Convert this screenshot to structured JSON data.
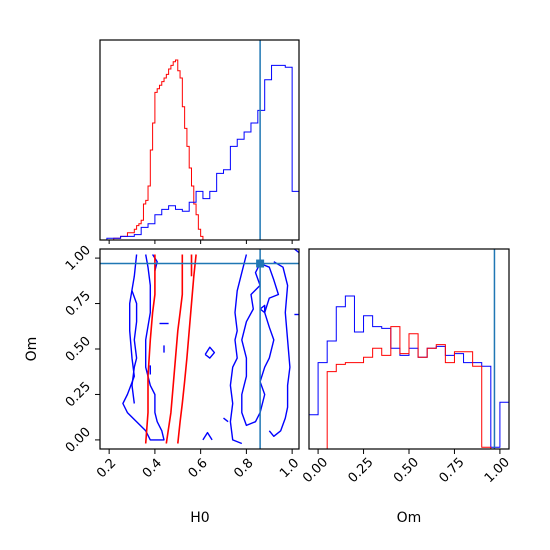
{
  "chart_data": {
    "type": "corner",
    "parameters": [
      "H0",
      "Om"
    ],
    "truth": {
      "H0": 0.86,
      "Om": 0.97
    },
    "colors": {
      "series_a": "#ff0000",
      "series_b": "#0000ff",
      "truth": "#1f77b4",
      "frame": "#000000"
    },
    "h0_ticks": [
      "0.2",
      "0.4",
      "0.6",
      "0.8",
      "1.0"
    ],
    "om_ticks": [
      "0.00",
      "0.25",
      "0.50",
      "0.75",
      "1.00"
    ],
    "hist_h0": {
      "xlim": [
        0.16,
        1.03
      ],
      "bin_edges": [
        0.16,
        0.19,
        0.22,
        0.25,
        0.28,
        0.31,
        0.34,
        0.37,
        0.4,
        0.43,
        0.46,
        0.49,
        0.52,
        0.55,
        0.58,
        0.61,
        0.64,
        0.67,
        0.7,
        0.73,
        0.76,
        0.79,
        0.82,
        0.85,
        0.88,
        0.91,
        0.94,
        0.97,
        1.0,
        1.03
      ],
      "red_edges": [
        0.16,
        0.22,
        0.25,
        0.28,
        0.31,
        0.32,
        0.33,
        0.34,
        0.35,
        0.36,
        0.37,
        0.38,
        0.39,
        0.4,
        0.41,
        0.42,
        0.43,
        0.44,
        0.45,
        0.46,
        0.47,
        0.48,
        0.49,
        0.5,
        0.51,
        0.52,
        0.53,
        0.54,
        0.55,
        0.56,
        0.57,
        0.58,
        0.59,
        0.6,
        0.61,
        0.62,
        0.63
      ],
      "red": [
        0.0,
        0.01,
        0.02,
        0.04,
        0.06,
        0.08,
        0.09,
        0.11,
        0.2,
        0.22,
        0.3,
        0.5,
        0.65,
        0.82,
        0.84,
        0.86,
        0.88,
        0.9,
        0.92,
        0.95,
        0.97,
        0.99,
        1.0,
        0.94,
        0.9,
        0.74,
        0.62,
        0.52,
        0.4,
        0.3,
        0.2,
        0.14,
        0.06,
        0.02,
        0.0,
        0.0
      ],
      "blue": [
        0.0,
        0.01,
        0.01,
        0.02,
        0.02,
        0.03,
        0.07,
        0.09,
        0.14,
        0.17,
        0.19,
        0.17,
        0.16,
        0.21,
        0.27,
        0.23,
        0.27,
        0.37,
        0.39,
        0.52,
        0.56,
        0.6,
        0.65,
        0.72,
        0.89,
        0.97,
        0.97,
        0.96,
        0.27
      ]
    },
    "hist_om": {
      "xlim": [
        -0.05,
        1.05
      ],
      "bin_edges": [
        -0.05,
        0.0,
        0.05,
        0.1,
        0.15,
        0.2,
        0.25,
        0.3,
        0.35,
        0.4,
        0.45,
        0.5,
        0.55,
        0.6,
        0.65,
        0.7,
        0.75,
        0.8,
        0.85,
        0.9,
        0.95,
        1.0,
        1.05
      ],
      "blue": [
        0.19,
        0.48,
        0.6,
        0.79,
        0.85,
        0.65,
        0.74,
        0.68,
        0.67,
        0.56,
        0.52,
        0.56,
        0.51,
        0.56,
        0.57,
        0.52,
        0.53,
        0.48,
        0.48,
        0.46,
        0.01,
        0.26
      ],
      "red": [
        0.0,
        0.0,
        0.43,
        0.47,
        0.48,
        0.48,
        0.51,
        0.56,
        0.52,
        0.68,
        0.53,
        0.64,
        0.51,
        0.56,
        0.58,
        0.48,
        0.54,
        0.54,
        0.46,
        0.01,
        0.0,
        0.0
      ]
    },
    "scatter": {
      "xlim": [
        0.16,
        1.03
      ],
      "ylim": [
        -0.05,
        1.05
      ],
      "red_contours": [
        [
          [
            0.36,
            -0.02
          ],
          [
            0.37,
            0.15
          ],
          [
            0.37,
            0.35
          ],
          [
            0.38,
            0.55
          ],
          [
            0.39,
            0.7
          ],
          [
            0.4,
            0.8
          ],
          [
            0.4,
            0.9
          ],
          [
            0.4,
            1.02
          ]
        ],
        [
          [
            0.45,
            -0.02
          ],
          [
            0.47,
            0.15
          ],
          [
            0.48,
            0.3
          ],
          [
            0.49,
            0.45
          ],
          [
            0.5,
            0.6
          ],
          [
            0.51,
            0.7
          ],
          [
            0.52,
            0.8
          ],
          [
            0.52,
            0.9
          ],
          [
            0.52,
            1.02
          ]
        ],
        [
          [
            0.5,
            -0.02
          ],
          [
            0.51,
            0.1
          ],
          [
            0.52,
            0.2
          ],
          [
            0.53,
            0.32
          ],
          [
            0.54,
            0.45
          ],
          [
            0.55,
            0.6
          ],
          [
            0.56,
            0.75
          ],
          [
            0.57,
            0.9
          ],
          [
            0.58,
            1.02
          ]
        ],
        [
          [
            0.56,
            1.02
          ],
          [
            0.56,
            0.9
          ]
        ]
      ],
      "blue_contours": [
        [
          [
            0.32,
            1.02
          ],
          [
            0.31,
            0.9
          ],
          [
            0.29,
            0.75
          ],
          [
            0.29,
            0.6
          ],
          [
            0.3,
            0.45
          ],
          [
            0.31,
            0.35
          ],
          [
            0.28,
            0.25
          ],
          [
            0.26,
            0.2
          ],
          [
            0.28,
            0.15
          ],
          [
            0.32,
            0.1
          ],
          [
            0.36,
            0.05
          ],
          [
            0.38,
            0.0
          ],
          [
            0.44,
            0.0
          ],
          [
            0.43,
            0.05
          ],
          [
            0.41,
            0.1
          ],
          [
            0.4,
            0.15
          ],
          [
            0.4,
            0.25
          ],
          [
            0.38,
            0.3
          ],
          [
            0.36,
            0.4
          ],
          [
            0.36,
            0.55
          ],
          [
            0.38,
            0.7
          ],
          [
            0.38,
            0.85
          ],
          [
            0.37,
            0.95
          ],
          [
            0.36,
            1.02
          ]
        ],
        [
          [
            0.39,
            1.02
          ],
          [
            0.41,
            0.98
          ],
          [
            0.4,
            0.93
          ]
        ],
        [
          [
            0.3,
            0.82
          ],
          [
            0.32,
            0.75
          ],
          [
            0.32,
            0.65
          ],
          [
            0.31,
            0.55
          ],
          [
            0.32,
            0.45
          ],
          [
            0.31,
            0.4
          ],
          [
            0.3,
            0.3
          ],
          [
            0.31,
            0.2
          ]
        ],
        [
          [
            0.42,
            0.64
          ],
          [
            0.46,
            0.64
          ]
        ],
        [
          [
            0.38,
            0.41
          ],
          [
            0.38,
            0.36
          ]
        ],
        [
          [
            0.44,
            0.52
          ],
          [
            0.44,
            0.48
          ]
        ],
        [
          [
            0.8,
            1.02
          ],
          [
            0.78,
            0.92
          ],
          [
            0.76,
            0.82
          ],
          [
            0.75,
            0.7
          ],
          [
            0.76,
            0.6
          ],
          [
            0.75,
            0.55
          ],
          [
            0.76,
            0.45
          ],
          [
            0.74,
            0.4
          ],
          [
            0.73,
            0.3
          ],
          [
            0.74,
            0.2
          ],
          [
            0.73,
            0.1
          ],
          [
            0.74,
            0.0
          ],
          [
            0.78,
            -0.02
          ]
        ],
        [
          [
            0.86,
            0.85
          ],
          [
            0.84,
            0.92
          ],
          [
            0.86,
            0.97
          ],
          [
            0.9,
            0.95
          ],
          [
            0.92,
            0.88
          ],
          [
            0.94,
            0.8
          ],
          [
            0.9,
            0.78
          ],
          [
            0.88,
            0.7
          ],
          [
            0.9,
            0.62
          ],
          [
            0.92,
            0.55
          ],
          [
            0.9,
            0.45
          ],
          [
            0.88,
            0.4
          ],
          [
            0.86,
            0.32
          ],
          [
            0.88,
            0.25
          ],
          [
            0.86,
            0.15
          ],
          [
            0.84,
            0.1
          ],
          [
            0.8,
            0.08
          ],
          [
            0.78,
            0.15
          ],
          [
            0.78,
            0.25
          ],
          [
            0.8,
            0.35
          ],
          [
            0.8,
            0.45
          ],
          [
            0.78,
            0.55
          ],
          [
            0.8,
            0.65
          ],
          [
            0.83,
            0.72
          ],
          [
            0.82,
            0.8
          ],
          [
            0.86,
            0.85
          ]
        ],
        [
          [
            0.92,
            0.98
          ],
          [
            0.96,
            0.95
          ],
          [
            0.98,
            0.85
          ],
          [
            0.97,
            0.7
          ],
          [
            0.98,
            0.55
          ],
          [
            0.99,
            0.4
          ],
          [
            0.98,
            0.3
          ],
          [
            0.98,
            0.18
          ],
          [
            0.97,
            0.12
          ],
          [
            0.95,
            0.05
          ],
          [
            0.92,
            0.02
          ],
          [
            0.9,
            0.05
          ]
        ],
        [
          [
            0.61,
            0.0
          ],
          [
            0.63,
            0.04
          ],
          [
            0.65,
            0.0
          ]
        ],
        [
          [
            0.7,
            0.12
          ],
          [
            0.72,
            0.1
          ]
        ],
        [
          [
            0.62,
            0.47
          ],
          [
            0.64,
            0.51
          ],
          [
            0.66,
            0.48
          ],
          [
            0.64,
            0.45
          ],
          [
            0.62,
            0.47
          ]
        ],
        [
          [
            0.86,
            0.72
          ],
          [
            0.88,
            0.74
          ],
          [
            0.88,
            0.7
          ],
          [
            0.86,
            0.72
          ]
        ],
        [
          [
            1.01,
            0.69
          ],
          [
            1.03,
            0.69
          ]
        ],
        [
          [
            1.01,
            1.05
          ],
          [
            1.03,
            1.03
          ]
        ]
      ]
    },
    "xlabel_h0": "H0",
    "xlabel_om": "Om",
    "ylabel_om": "Om"
  }
}
